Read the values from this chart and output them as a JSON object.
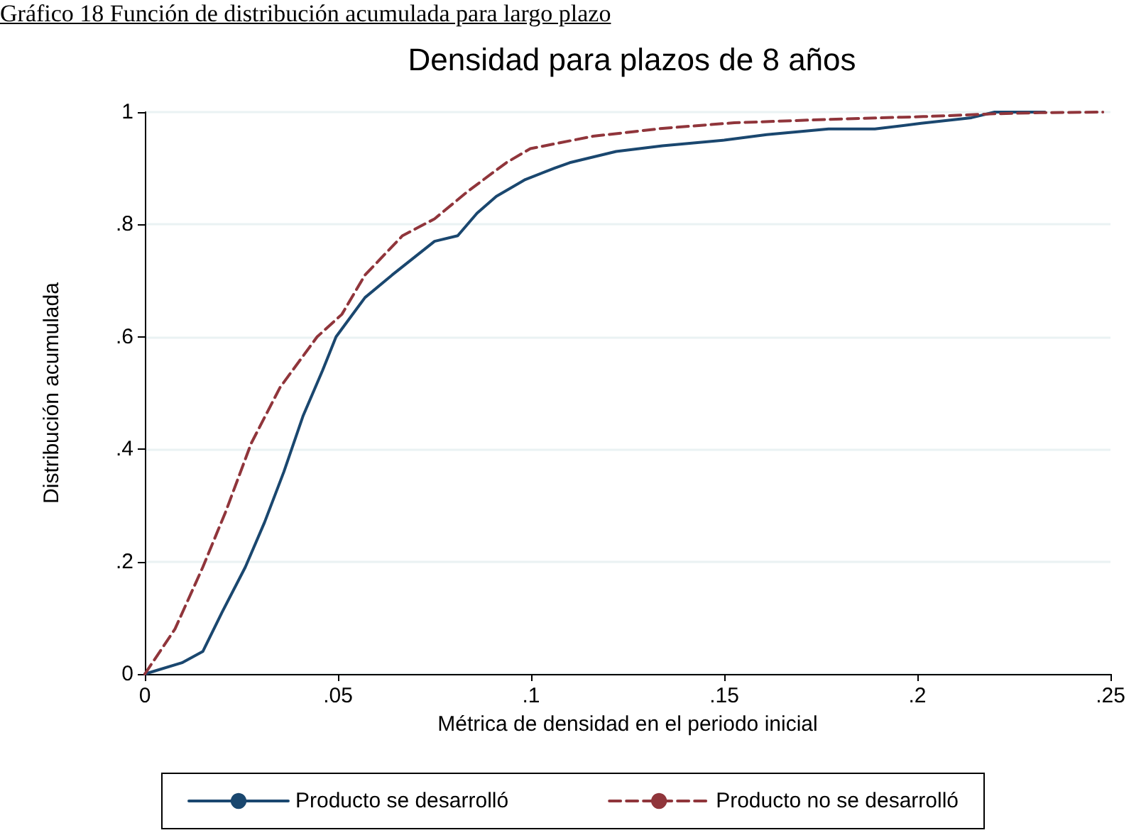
{
  "chart_data": {
    "type": "line",
    "title": "Densidad para plazos de 8 años",
    "xlabel": "Métrica de densidad en el periodo inicial",
    "ylabel": "Distribución acumulada",
    "annotations": [
      "Gráfico 18 Función de distribución acumulada para largo plazo"
    ],
    "xlim": [
      0,
      0.25
    ],
    "xticks": [
      0,
      {
        "value": 0.05,
        "label": ".05"
      },
      {
        "value": 0.1,
        "label": ".1"
      },
      {
        "value": 0.15,
        "label": ".15"
      },
      {
        "value": 0.2,
        "label": ".2"
      },
      {
        "value": 0.25,
        "label": ".25"
      }
    ],
    "ylim": [
      0,
      1
    ],
    "yticks": [
      0,
      {
        "value": 0.2,
        "label": ".2"
      },
      {
        "value": 0.4,
        "label": ".4"
      },
      {
        "value": 0.6,
        "label": ".6"
      },
      {
        "value": 0.8,
        "label": ".8"
      },
      1
    ],
    "grid": "y",
    "legend": "bottom",
    "marker": "none",
    "series": [
      {
        "name": "Producto se desarrolló",
        "color": "#1a476f",
        "line_style": "solid",
        "x": [
          0,
          0.0096,
          0.015,
          0.02,
          0.026,
          0.031,
          0.036,
          0.041,
          0.046,
          0.0495,
          0.057,
          0.064,
          0.075,
          0.081,
          0.086,
          0.091,
          0.0985,
          0.106,
          0.11,
          0.122,
          0.134,
          0.15,
          0.161,
          0.177,
          0.189,
          0.201,
          0.214,
          0.22,
          0.233
        ],
        "values": [
          0,
          0.02,
          0.04,
          0.11,
          0.19,
          0.27,
          0.36,
          0.46,
          0.54,
          0.6,
          0.67,
          0.71,
          0.77,
          0.78,
          0.82,
          0.85,
          0.88,
          0.9,
          0.91,
          0.93,
          0.94,
          0.95,
          0.96,
          0.97,
          0.97,
          0.98,
          0.99,
          1,
          1
        ]
      },
      {
        "name": "Producto no se desarrolló",
        "color": "#90353b",
        "line_style": "dashed",
        "x": [
          0,
          0.0078,
          0.015,
          0.021,
          0.0275,
          0.035,
          0.0446,
          0.051,
          0.057,
          0.0667,
          0.075,
          0.0838,
          0.0936,
          0.0998,
          0.116,
          0.134,
          0.1526,
          0.177,
          0.2015,
          0.22,
          0.232,
          0.248
        ],
        "values": [
          0,
          0.08,
          0.19,
          0.29,
          0.41,
          0.51,
          0.6,
          0.64,
          0.71,
          0.78,
          0.81,
          0.86,
          0.91,
          0.935,
          0.957,
          0.971,
          0.981,
          0.987,
          0.992,
          0.997,
          0.999,
          1
        ]
      }
    ]
  }
}
